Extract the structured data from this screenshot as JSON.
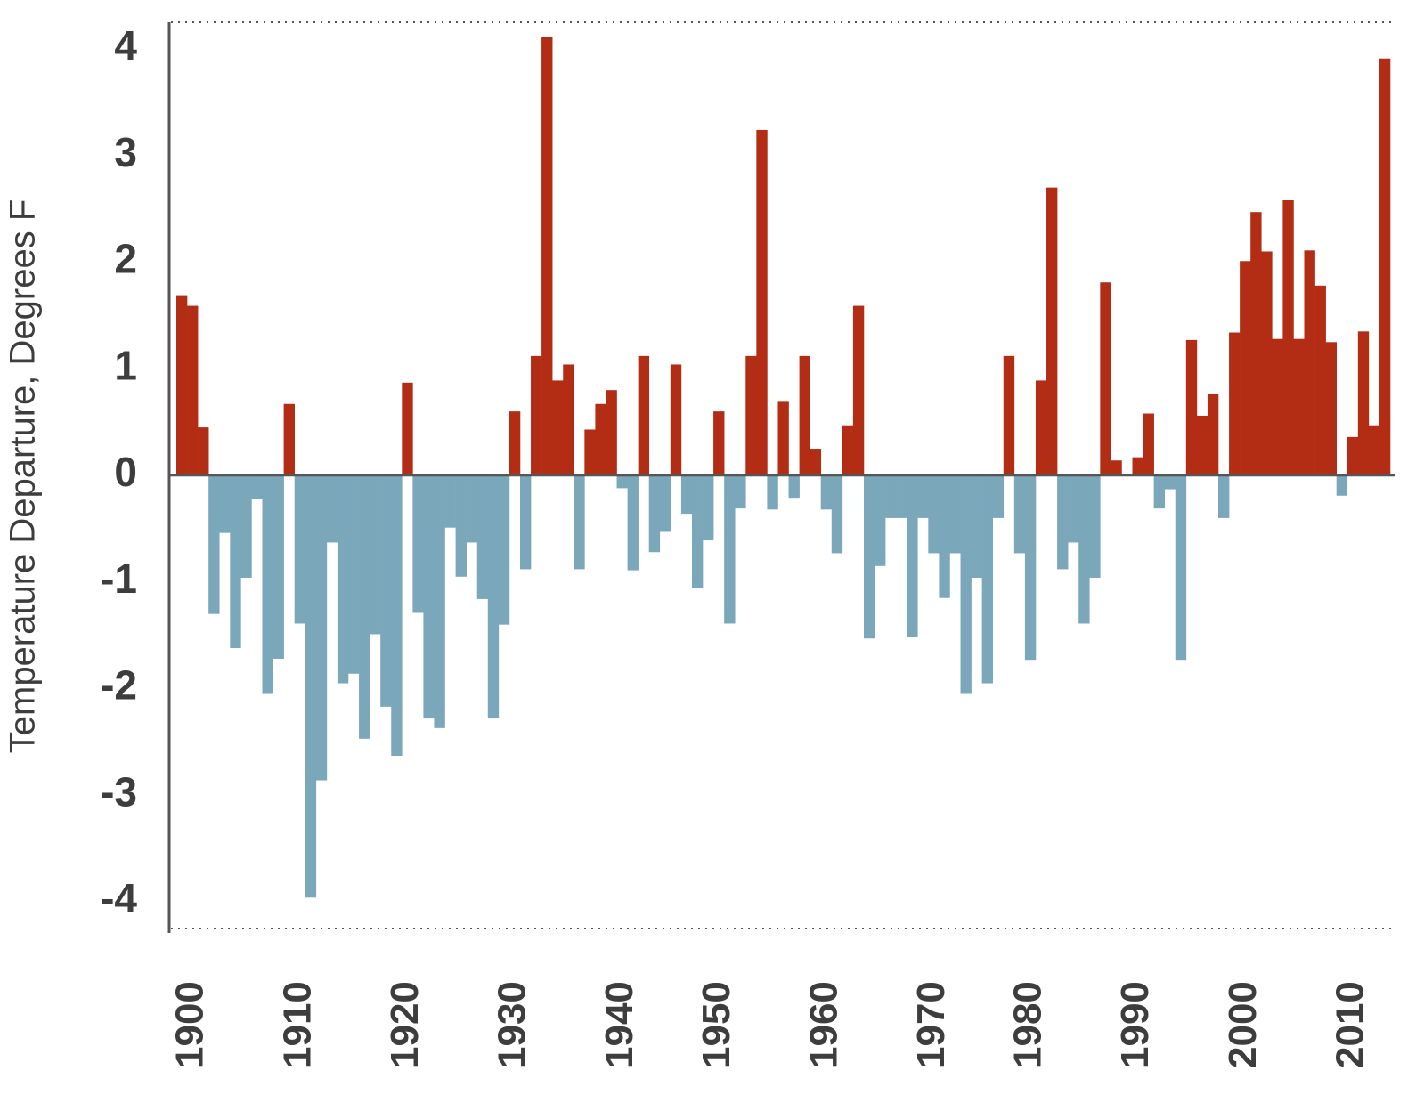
{
  "chart_data": {
    "type": "bar",
    "y_label": "Temperature Departure, Degrees F",
    "categories": [
      null,
      "1900",
      null,
      null,
      null,
      null,
      null,
      null,
      null,
      null,
      null,
      "1910",
      null,
      null,
      null,
      null,
      null,
      null,
      null,
      null,
      null,
      "1920",
      null,
      null,
      null,
      null,
      null,
      null,
      null,
      null,
      null,
      "1930",
      null,
      null,
      null,
      null,
      null,
      null,
      null,
      null,
      null,
      "1940",
      null,
      null,
      null,
      null,
      null,
      null,
      null,
      null,
      "1950",
      null,
      null,
      null,
      null,
      null,
      null,
      null,
      null,
      null,
      "1960",
      null,
      null,
      null,
      null,
      null,
      null,
      null,
      null,
      null,
      "1970",
      null,
      null,
      null,
      null,
      null,
      null,
      null,
      null,
      "1980",
      null,
      null,
      null,
      null,
      null,
      null,
      null,
      null,
      null,
      "1990",
      null,
      null,
      null,
      null,
      null,
      null,
      null,
      null,
      null,
      "2000",
      null,
      null,
      null,
      null,
      null,
      null,
      null,
      null,
      null,
      "2010",
      null,
      null,
      null
    ],
    "values": [
      1.69,
      1.59,
      0.45,
      -1.3,
      -0.54,
      -1.62,
      -0.96,
      -0.22,
      -2.05,
      -1.72,
      0.67,
      -1.39,
      -3.96,
      -2.86,
      -0.63,
      -1.95,
      -1.86,
      -2.47,
      -1.49,
      -2.17,
      -2.63,
      0.87,
      -1.29,
      -2.28,
      -2.37,
      -0.49,
      -0.95,
      -0.63,
      -1.16,
      -2.28,
      -1.4,
      0.6,
      -0.88,
      1.12,
      4.11,
      0.89,
      1.04,
      -0.88,
      0.43,
      0.67,
      0.8,
      -0.12,
      -0.89,
      1.12,
      -0.72,
      -0.53,
      1.04,
      -0.36,
      -1.06,
      -0.61,
      0.6,
      -1.39,
      -0.31,
      1.12,
      3.24,
      -0.32,
      0.69,
      -0.21,
      1.12,
      0.25,
      -0.32,
      -0.73,
      0.47,
      1.59,
      -1.53,
      -0.85,
      -0.4,
      -0.4,
      -1.52,
      -0.4,
      -0.73,
      -1.15,
      -0.73,
      -2.05,
      -0.96,
      -1.95,
      -0.4,
      1.12,
      -0.73,
      -1.73,
      0.89,
      2.7,
      -0.88,
      -0.63,
      -1.39,
      -0.96,
      1.81,
      0.14,
      0,
      0.17,
      0.58,
      -0.31,
      -0.13,
      -1.73,
      1.27,
      0.56,
      0.76,
      -0.4,
      1.34,
      2.01,
      2.47,
      2.1,
      1.28,
      2.58,
      1.28,
      2.11,
      1.78,
      1.25,
      -0.19,
      0.36,
      1.35,
      0.47,
      3.91
    ],
    "positive_color": "#b22d14",
    "negative_color": "#7ba7bb",
    "ylim": [
      -4.25,
      4.25
    ],
    "yticks": [
      -4,
      -3,
      -2,
      -1,
      0,
      1,
      2,
      3,
      4
    ]
  }
}
